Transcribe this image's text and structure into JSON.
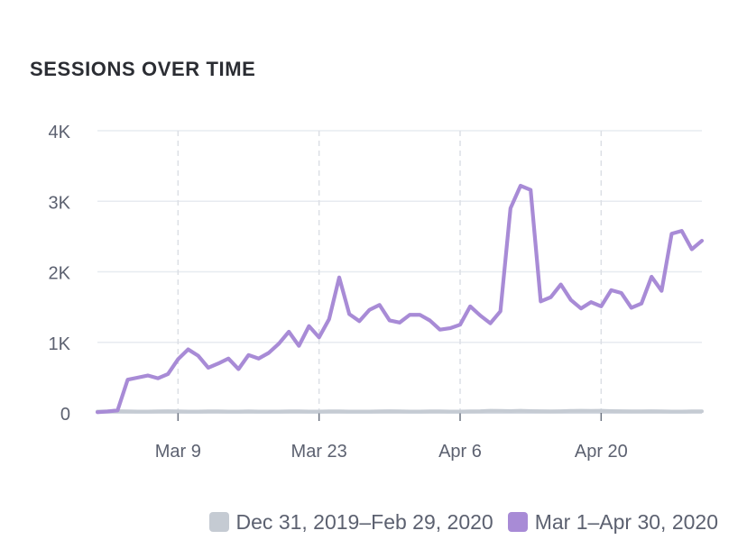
{
  "card": {
    "title": "SESSIONS OVER TIME"
  },
  "chart_data": {
    "type": "line",
    "title": "SESSIONS OVER TIME",
    "xlabel": "",
    "ylabel": "",
    "ylim": [
      0,
      4000
    ],
    "y_ticks": [
      {
        "value": 0,
        "label": "0"
      },
      {
        "value": 1000,
        "label": "1K"
      },
      {
        "value": 2000,
        "label": "2K"
      },
      {
        "value": 3000,
        "label": "3K"
      },
      {
        "value": 4000,
        "label": "4K"
      }
    ],
    "x_tick_labels": [
      "Mar 9",
      "Mar 23",
      "Apr 6",
      "Apr 20"
    ],
    "x": [
      "Mar 1",
      "Mar 2",
      "Mar 3",
      "Mar 4",
      "Mar 5",
      "Mar 6",
      "Mar 7",
      "Mar 8",
      "Mar 9",
      "Mar 10",
      "Mar 11",
      "Mar 12",
      "Mar 13",
      "Mar 14",
      "Mar 15",
      "Mar 16",
      "Mar 17",
      "Mar 18",
      "Mar 19",
      "Mar 20",
      "Mar 21",
      "Mar 22",
      "Mar 23",
      "Mar 24",
      "Mar 25",
      "Mar 26",
      "Mar 27",
      "Mar 28",
      "Mar 29",
      "Mar 30",
      "Mar 31",
      "Apr 1",
      "Apr 2",
      "Apr 3",
      "Apr 4",
      "Apr 5",
      "Apr 6",
      "Apr 7",
      "Apr 8",
      "Apr 9",
      "Apr 10",
      "Apr 11",
      "Apr 12",
      "Apr 13",
      "Apr 14",
      "Apr 15",
      "Apr 16",
      "Apr 17",
      "Apr 18",
      "Apr 19",
      "Apr 20",
      "Apr 21",
      "Apr 22",
      "Apr 23",
      "Apr 24",
      "Apr 25",
      "Apr 26",
      "Apr 27",
      "Apr 28",
      "Apr 29",
      "Apr 30"
    ],
    "grid": {
      "horizontal": "solid",
      "vertical": "dashed at labeled dates"
    },
    "legend_position": "bottom-right",
    "series": [
      {
        "name": "Dec 31, 2019–Feb 29, 2020",
        "color": "#c5cbd3",
        "values": [
          20,
          22,
          24,
          22,
          20,
          20,
          22,
          24,
          22,
          20,
          20,
          22,
          22,
          20,
          20,
          22,
          20,
          20,
          20,
          22,
          22,
          20,
          20,
          22,
          22,
          20,
          20,
          20,
          22,
          24,
          22,
          20,
          20,
          22,
          22,
          20,
          20,
          22,
          24,
          30,
          28,
          26,
          30,
          26,
          24,
          22,
          24,
          28,
          30,
          28,
          30,
          26,
          24,
          22,
          22,
          24,
          22,
          20,
          20,
          22,
          22
        ]
      },
      {
        "name": "Mar 1–Apr 30, 2020",
        "color": "#a88bd6",
        "values": [
          10,
          20,
          35,
          470,
          500,
          530,
          490,
          550,
          760,
          900,
          810,
          640,
          700,
          770,
          620,
          820,
          770,
          850,
          980,
          1150,
          950,
          1230,
          1070,
          1330,
          1920,
          1400,
          1300,
          1460,
          1530,
          1310,
          1280,
          1390,
          1390,
          1310,
          1180,
          1200,
          1250,
          1510,
          1380,
          1270,
          1440,
          2900,
          3220,
          3160,
          1580,
          1640,
          1820,
          1600,
          1480,
          1570,
          1510,
          1740,
          1700,
          1490,
          1550,
          1930,
          1730,
          2540,
          2580,
          2320,
          2440
        ]
      }
    ]
  }
}
